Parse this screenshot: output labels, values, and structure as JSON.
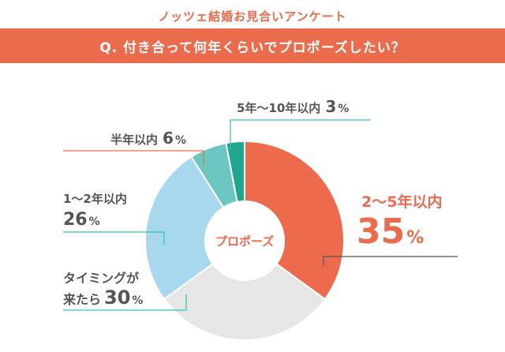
{
  "header": {
    "survey_title": "ノッツェ結婚お見合いアンケート",
    "question": "Q. 付き合って何年くらいでプロポーズしたい？"
  },
  "chart_data": {
    "type": "pie",
    "center_label": "プロポーズ",
    "slices": [
      {
        "label": "2〜5年以内",
        "value": 35,
        "display": "35%",
        "color": "#EC6B4C"
      },
      {
        "label": "タイミングが来たら",
        "value": 30,
        "display": "30%",
        "color": "#E6E6E6"
      },
      {
        "label": "1〜2年以内",
        "value": 26,
        "display": "26%",
        "color": "#A8D8EE"
      },
      {
        "label": "半年以内",
        "value": 6,
        "display": "6%",
        "color": "#6CC6C0"
      },
      {
        "label": "5年〜10年以内",
        "value": 3,
        "display": "3%",
        "color": "#1FA68C"
      }
    ]
  },
  "annotations": {
    "s0_name": "2〜5年以内",
    "s0_value": "35",
    "s1_line1": "タイミングが",
    "s1_line2": "来たら",
    "s1_value": "30",
    "s2_name": "1〜2年以内",
    "s2_value": "26",
    "s3_name": "半年以内",
    "s3_value": "6",
    "s4_name": "5年〜10年以内",
    "s4_value": "3",
    "percent_sign": "%"
  }
}
